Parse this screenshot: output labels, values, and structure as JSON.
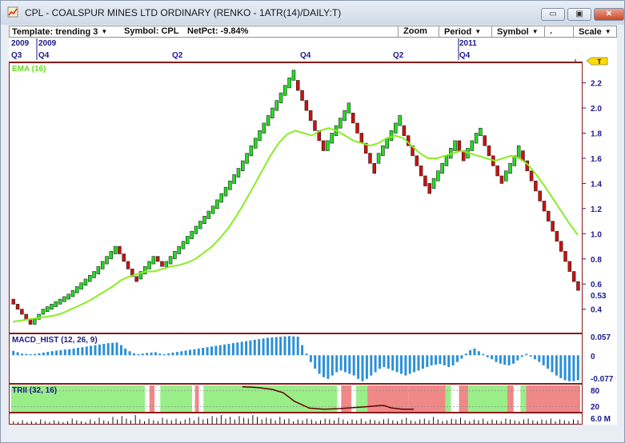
{
  "window": {
    "title": "CPL - COALSPUR MINES LTD  ORDINARY (RENKO - 1ATR(14)/DAILY:T)",
    "minimize_label": "▭",
    "restore_label": "▣",
    "close_label": "✕"
  },
  "toolbar": {
    "template_label": "Template: trending 3",
    "symbol_label": "Symbol: CPL",
    "netpct_label": "NetPct: -9.84%",
    "zoom_label": "Zoom",
    "period_label": "Period",
    "symbol_menu_label": "Symbol",
    "dot_label": ".",
    "scale_label": "Scale"
  },
  "time_axis": {
    "years": [
      {
        "label": "2009"
      },
      {
        "label": "2009"
      },
      {
        "label": "2011"
      }
    ],
    "quarters": [
      {
        "label": "Q3"
      },
      {
        "label": "Q4"
      },
      {
        "label": "Q2"
      },
      {
        "label": "Q4"
      },
      {
        "label": "Q2"
      },
      {
        "label": "Q4"
      }
    ]
  },
  "price_panel": {
    "ema_label": "EMA (16)",
    "last_price_label": "0.53",
    "marker_label": "T",
    "y_ticks": [
      "2.2",
      "2.0",
      "1.8",
      "1.6",
      "1.4",
      "1.2",
      "1.0",
      "0.8",
      "0.6",
      "0.4"
    ],
    "colors": {
      "up": "#22dd22",
      "down": "#cc1111",
      "ema": "#88ee22"
    }
  },
  "macd_panel": {
    "label": "MACD_HIST (12, 26, 9)",
    "y_ticks": [
      "0.057",
      "0",
      "-0.077"
    ],
    "color": "#2a8fd8"
  },
  "trii_panel": {
    "label": "TRII (32, 16)",
    "y_ticks": [
      "80",
      "20"
    ],
    "colors": {
      "green": "#99ee88",
      "red": "#f08888",
      "line": "#660000"
    }
  },
  "volume_panel": {
    "label": "6.0 M"
  },
  "chart_data": {
    "type": "renko",
    "price": {
      "bricks": [
        [
          0.48,
          0.44,
          0
        ],
        [
          0.44,
          0.4,
          0
        ],
        [
          0.4,
          0.36,
          0
        ],
        [
          0.36,
          0.32,
          0
        ],
        [
          0.32,
          0.28,
          0
        ],
        [
          0.28,
          0.32,
          1
        ],
        [
          0.32,
          0.36,
          1
        ],
        [
          0.36,
          0.4,
          1
        ],
        [
          0.38,
          0.42,
          1
        ],
        [
          0.4,
          0.44,
          1
        ],
        [
          0.42,
          0.46,
          1
        ],
        [
          0.44,
          0.48,
          1
        ],
        [
          0.46,
          0.5,
          1
        ],
        [
          0.48,
          0.52,
          1
        ],
        [
          0.5,
          0.55,
          1
        ],
        [
          0.53,
          0.58,
          1
        ],
        [
          0.56,
          0.61,
          1
        ],
        [
          0.59,
          0.64,
          1
        ],
        [
          0.62,
          0.67,
          1
        ],
        [
          0.65,
          0.7,
          1
        ],
        [
          0.68,
          0.74,
          1
        ],
        [
          0.72,
          0.78,
          1
        ],
        [
          0.76,
          0.82,
          1
        ],
        [
          0.8,
          0.86,
          1
        ],
        [
          0.84,
          0.9,
          1
        ],
        [
          0.9,
          0.84,
          0
        ],
        [
          0.84,
          0.78,
          0
        ],
        [
          0.78,
          0.72,
          0
        ],
        [
          0.72,
          0.66,
          0
        ],
        [
          0.66,
          0.62,
          0
        ],
        [
          0.64,
          0.7,
          1
        ],
        [
          0.68,
          0.74,
          1
        ],
        [
          0.72,
          0.78,
          1
        ],
        [
          0.76,
          0.82,
          1
        ],
        [
          0.82,
          0.78,
          0
        ],
        [
          0.78,
          0.74,
          0
        ],
        [
          0.74,
          0.78,
          1
        ],
        [
          0.76,
          0.82,
          1
        ],
        [
          0.8,
          0.86,
          1
        ],
        [
          0.84,
          0.9,
          1
        ],
        [
          0.88,
          0.94,
          1
        ],
        [
          0.92,
          0.98,
          1
        ],
        [
          0.96,
          1.02,
          1
        ],
        [
          1.0,
          1.06,
          1
        ],
        [
          1.04,
          1.1,
          1
        ],
        [
          1.08,
          1.14,
          1
        ],
        [
          1.12,
          1.18,
          1
        ],
        [
          1.16,
          1.22,
          1
        ],
        [
          1.2,
          1.27,
          1
        ],
        [
          1.25,
          1.32,
          1
        ],
        [
          1.3,
          1.37,
          1
        ],
        [
          1.35,
          1.42,
          1
        ],
        [
          1.4,
          1.47,
          1
        ],
        [
          1.45,
          1.52,
          1
        ],
        [
          1.5,
          1.58,
          1
        ],
        [
          1.56,
          1.64,
          1
        ],
        [
          1.62,
          1.7,
          1
        ],
        [
          1.68,
          1.76,
          1
        ],
        [
          1.74,
          1.82,
          1
        ],
        [
          1.8,
          1.88,
          1
        ],
        [
          1.86,
          1.94,
          1
        ],
        [
          1.92,
          2.0,
          1
        ],
        [
          1.98,
          2.06,
          1
        ],
        [
          2.04,
          2.12,
          1
        ],
        [
          2.1,
          2.18,
          1
        ],
        [
          2.16,
          2.24,
          1
        ],
        [
          2.22,
          2.3,
          1
        ],
        [
          2.22,
          2.14,
          0
        ],
        [
          2.14,
          2.06,
          0
        ],
        [
          2.06,
          1.98,
          0
        ],
        [
          1.98,
          1.9,
          0
        ],
        [
          1.9,
          1.82,
          0
        ],
        [
          1.82,
          1.74,
          0
        ],
        [
          1.74,
          1.66,
          0
        ],
        [
          1.66,
          1.74,
          1
        ],
        [
          1.72,
          1.8,
          1
        ],
        [
          1.78,
          1.86,
          1
        ],
        [
          1.84,
          1.92,
          1
        ],
        [
          1.9,
          1.98,
          1
        ],
        [
          1.96,
          2.04,
          1
        ],
        [
          1.96,
          1.88,
          0
        ],
        [
          1.88,
          1.8,
          0
        ],
        [
          1.8,
          1.72,
          0
        ],
        [
          1.72,
          1.64,
          0
        ],
        [
          1.64,
          1.56,
          0
        ],
        [
          1.56,
          1.48,
          0
        ],
        [
          1.56,
          1.64,
          1
        ],
        [
          1.62,
          1.7,
          1
        ],
        [
          1.68,
          1.76,
          1
        ],
        [
          1.74,
          1.82,
          1
        ],
        [
          1.8,
          1.88,
          1
        ],
        [
          1.86,
          1.94,
          1
        ],
        [
          1.86,
          1.78,
          0
        ],
        [
          1.78,
          1.7,
          0
        ],
        [
          1.7,
          1.62,
          0
        ],
        [
          1.62,
          1.54,
          0
        ],
        [
          1.54,
          1.46,
          0
        ],
        [
          1.46,
          1.38,
          0
        ],
        [
          1.4,
          1.32,
          0
        ],
        [
          1.36,
          1.44,
          1
        ],
        [
          1.42,
          1.5,
          1
        ],
        [
          1.48,
          1.56,
          1
        ],
        [
          1.54,
          1.62,
          1
        ],
        [
          1.6,
          1.68,
          1
        ],
        [
          1.66,
          1.74,
          1
        ],
        [
          1.74,
          1.66,
          0
        ],
        [
          1.66,
          1.58,
          0
        ],
        [
          1.6,
          1.68,
          1
        ],
        [
          1.66,
          1.74,
          1
        ],
        [
          1.72,
          1.8,
          1
        ],
        [
          1.78,
          1.84,
          1
        ],
        [
          1.78,
          1.7,
          0
        ],
        [
          1.7,
          1.62,
          0
        ],
        [
          1.62,
          1.54,
          0
        ],
        [
          1.54,
          1.46,
          0
        ],
        [
          1.46,
          1.4,
          0
        ],
        [
          1.42,
          1.5,
          1
        ],
        [
          1.48,
          1.56,
          1
        ],
        [
          1.54,
          1.62,
          1
        ],
        [
          1.6,
          1.7,
          1
        ],
        [
          1.66,
          1.58,
          0
        ],
        [
          1.58,
          1.5,
          0
        ],
        [
          1.5,
          1.42,
          0
        ],
        [
          1.42,
          1.34,
          0
        ],
        [
          1.34,
          1.26,
          0
        ],
        [
          1.26,
          1.18,
          0
        ],
        [
          1.18,
          1.1,
          0
        ],
        [
          1.1,
          1.02,
          0
        ],
        [
          1.02,
          0.94,
          0
        ],
        [
          0.94,
          0.86,
          0
        ],
        [
          0.86,
          0.78,
          0
        ],
        [
          0.78,
          0.7,
          0
        ],
        [
          0.7,
          0.62,
          0
        ],
        [
          0.62,
          0.55,
          0
        ]
      ],
      "ema": [
        0.3,
        0.31,
        0.32,
        0.33,
        0.34,
        0.35,
        0.37,
        0.4,
        0.43,
        0.46,
        0.5,
        0.54,
        0.58,
        0.63,
        0.66,
        0.68,
        0.7,
        0.7,
        0.72,
        0.74,
        0.75,
        0.77,
        0.8,
        0.85,
        0.9,
        0.97,
        1.05,
        1.15,
        1.26,
        1.38,
        1.5,
        1.62,
        1.72,
        1.79,
        1.82,
        1.8,
        1.78,
        1.82,
        1.84,
        1.82,
        1.78,
        1.74,
        1.72,
        1.7,
        1.72,
        1.76,
        1.78,
        1.76,
        1.7,
        1.64,
        1.6,
        1.6,
        1.62,
        1.64,
        1.66,
        1.64,
        1.62,
        1.6,
        1.58,
        1.6,
        1.62,
        1.6,
        1.55,
        1.47,
        1.38,
        1.28,
        1.18,
        1.08,
        0.99
      ],
      "ylim": [
        0.22,
        2.35
      ]
    },
    "macd": {
      "values": [
        0.013,
        0.009,
        0.005,
        0.004,
        0.003,
        0.004,
        0.006,
        0.008,
        0.01,
        0.012,
        0.014,
        0.015,
        0.017,
        0.018,
        0.02,
        0.022,
        0.024,
        0.026,
        0.028,
        0.03,
        0.032,
        0.034,
        0.036,
        0.037,
        0.038,
        0.03,
        0.02,
        0.012,
        0.006,
        0.003,
        0.005,
        0.007,
        0.008,
        0.009,
        0.005,
        0.003,
        0.006,
        0.008,
        0.01,
        0.012,
        0.014,
        0.016,
        0.018,
        0.02,
        0.022,
        0.024,
        0.026,
        0.028,
        0.03,
        0.032,
        0.034,
        0.036,
        0.038,
        0.04,
        0.042,
        0.044,
        0.046,
        0.048,
        0.05,
        0.052,
        0.053,
        0.054,
        0.055,
        0.056,
        0.057,
        0.056,
        0.055,
        0.03,
        0.005,
        -0.02,
        -0.04,
        -0.055,
        -0.065,
        -0.07,
        -0.06,
        -0.05,
        -0.045,
        -0.05,
        -0.055,
        -0.06,
        -0.07,
        -0.077,
        -0.07,
        -0.06,
        -0.05,
        -0.04,
        -0.035,
        -0.04,
        -0.045,
        -0.05,
        -0.055,
        -0.06,
        -0.055,
        -0.05,
        -0.045,
        -0.04,
        -0.035,
        -0.03,
        -0.028,
        -0.026,
        -0.03,
        -0.035,
        -0.03,
        -0.02,
        -0.01,
        0.005,
        0.015,
        0.02,
        0.012,
        0.004,
        -0.006,
        -0.012,
        -0.02,
        -0.025,
        -0.028,
        -0.03,
        -0.025,
        -0.015,
        -0.005,
        0.004,
        -0.004,
        -0.012,
        -0.02,
        -0.03,
        -0.04,
        -0.05,
        -0.06,
        -0.068,
        -0.074,
        -0.077,
        -0.077,
        -0.074
      ],
      "ylim": [
        -0.08,
        0.06
      ]
    },
    "trii": {
      "line": [
        [
          0.62,
          95
        ],
        [
          0.66,
          92
        ],
        [
          0.7,
          85
        ],
        [
          0.73,
          72
        ],
        [
          0.76,
          40
        ],
        [
          0.8,
          14
        ],
        [
          0.84,
          10
        ],
        [
          0.88,
          12
        ],
        [
          0.92,
          16
        ],
        [
          0.96,
          20
        ],
        [
          0.99,
          24
        ],
        [
          1.0,
          24
        ],
        [
          1.02,
          15
        ],
        [
          1.05,
          10
        ],
        [
          1.08,
          10
        ]
      ],
      "ylim": [
        0,
        100
      ]
    },
    "volume": {
      "values": [
        0.3,
        0.2,
        0.4,
        0.2,
        0.3,
        0.2,
        0.5,
        0.3,
        0.2,
        0.4,
        0.3,
        0.2,
        0.3,
        0.6,
        0.4,
        0.3,
        0.2,
        0.5,
        0.3,
        0.7,
        0.4,
        0.3,
        0.8,
        0.5,
        0.9,
        0.6,
        0.4,
        1.0,
        0.5,
        0.3,
        0.6,
        0.4,
        0.3,
        0.7,
        0.5,
        0.4,
        0.6,
        0.3,
        0.5,
        0.7,
        0.4,
        0.8,
        0.5,
        0.6,
        0.9,
        0.7,
        1.0,
        0.6,
        0.8,
        0.5,
        0.9,
        0.7,
        0.6,
        1.0,
        0.8,
        0.5,
        0.7,
        0.6,
        0.4,
        0.8,
        0.5,
        0.6,
        0.3,
        0.5,
        0.4,
        0.6,
        0.5,
        0.3,
        0.4,
        0.6,
        0.5,
        0.4,
        0.7,
        0.5,
        0.3,
        0.5,
        0.4,
        0.6,
        0.3,
        0.5,
        0.4,
        0.3,
        0.5,
        0.6,
        0.4,
        0.3,
        0.5,
        0.7,
        0.4,
        0.3,
        0.5,
        0.6,
        0.4,
        0.8,
        0.5,
        0.3,
        0.4,
        0.6,
        0.5,
        0.7,
        0.4,
        0.3,
        0.5,
        0.4,
        0.6,
        0.3,
        0.5,
        0.4,
        0.3,
        0.6,
        0.5,
        0.4,
        0.3,
        0.5,
        0.6,
        0.4,
        0.3,
        0.5,
        0.4,
        0.6,
        0.3,
        0.5,
        0.4,
        0.3,
        0.5,
        0.4
      ],
      "ylim": [
        0,
        1.1
      ]
    }
  }
}
